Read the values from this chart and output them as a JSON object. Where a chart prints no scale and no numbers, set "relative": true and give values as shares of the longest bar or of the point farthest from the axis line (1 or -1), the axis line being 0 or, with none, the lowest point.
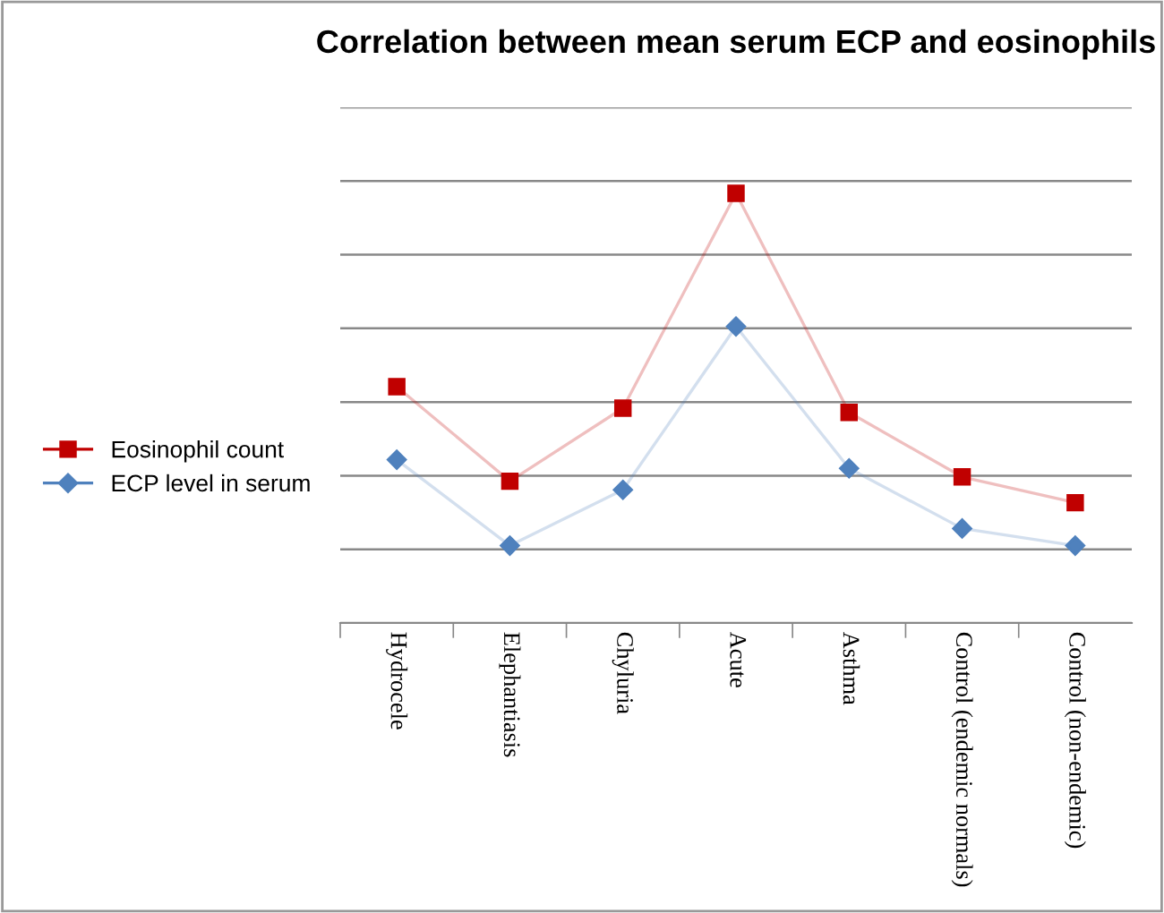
{
  "chart_data": {
    "type": "line",
    "title": "Correlation between mean serum ECP and eosinophils",
    "relative": true,
    "categories": [
      "Hydrocele",
      "Elephantiasis",
      "Chyluria",
      "Acute",
      "Asthma",
      "Control (endemic normals)",
      "Control (non-endemic)"
    ],
    "series": [
      {
        "name": "Eosinophil count",
        "color": "#c00000",
        "marker": "square",
        "values": [
          0.55,
          0.33,
          0.5,
          1,
          0.49,
          0.34,
          0.28
        ]
      },
      {
        "name": "ECP level in serum",
        "color": "#4f81bd",
        "marker": "diamond",
        "values": [
          0.38,
          0.18,
          0.31,
          0.69,
          0.36,
          0.22,
          0.18
        ]
      }
    ],
    "grid": "y",
    "legend": "left",
    "tick_labels": "x"
  }
}
